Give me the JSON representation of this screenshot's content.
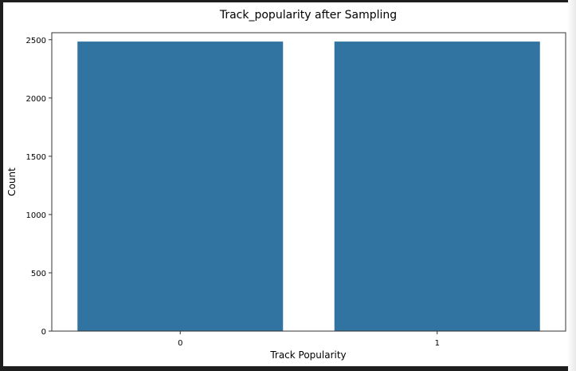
{
  "chart_data": {
    "type": "bar",
    "title": "Track_popularity after Sampling",
    "xlabel": "Track Popularity",
    "ylabel": "Count",
    "categories": [
      "0",
      "1"
    ],
    "values": [
      2484,
      2484
    ],
    "ylim": [
      0,
      2560
    ],
    "yticks": [
      0,
      500,
      1000,
      1500,
      2000,
      2500
    ],
    "grid": false,
    "legend": "none",
    "bar_color": "#3274a1"
  }
}
